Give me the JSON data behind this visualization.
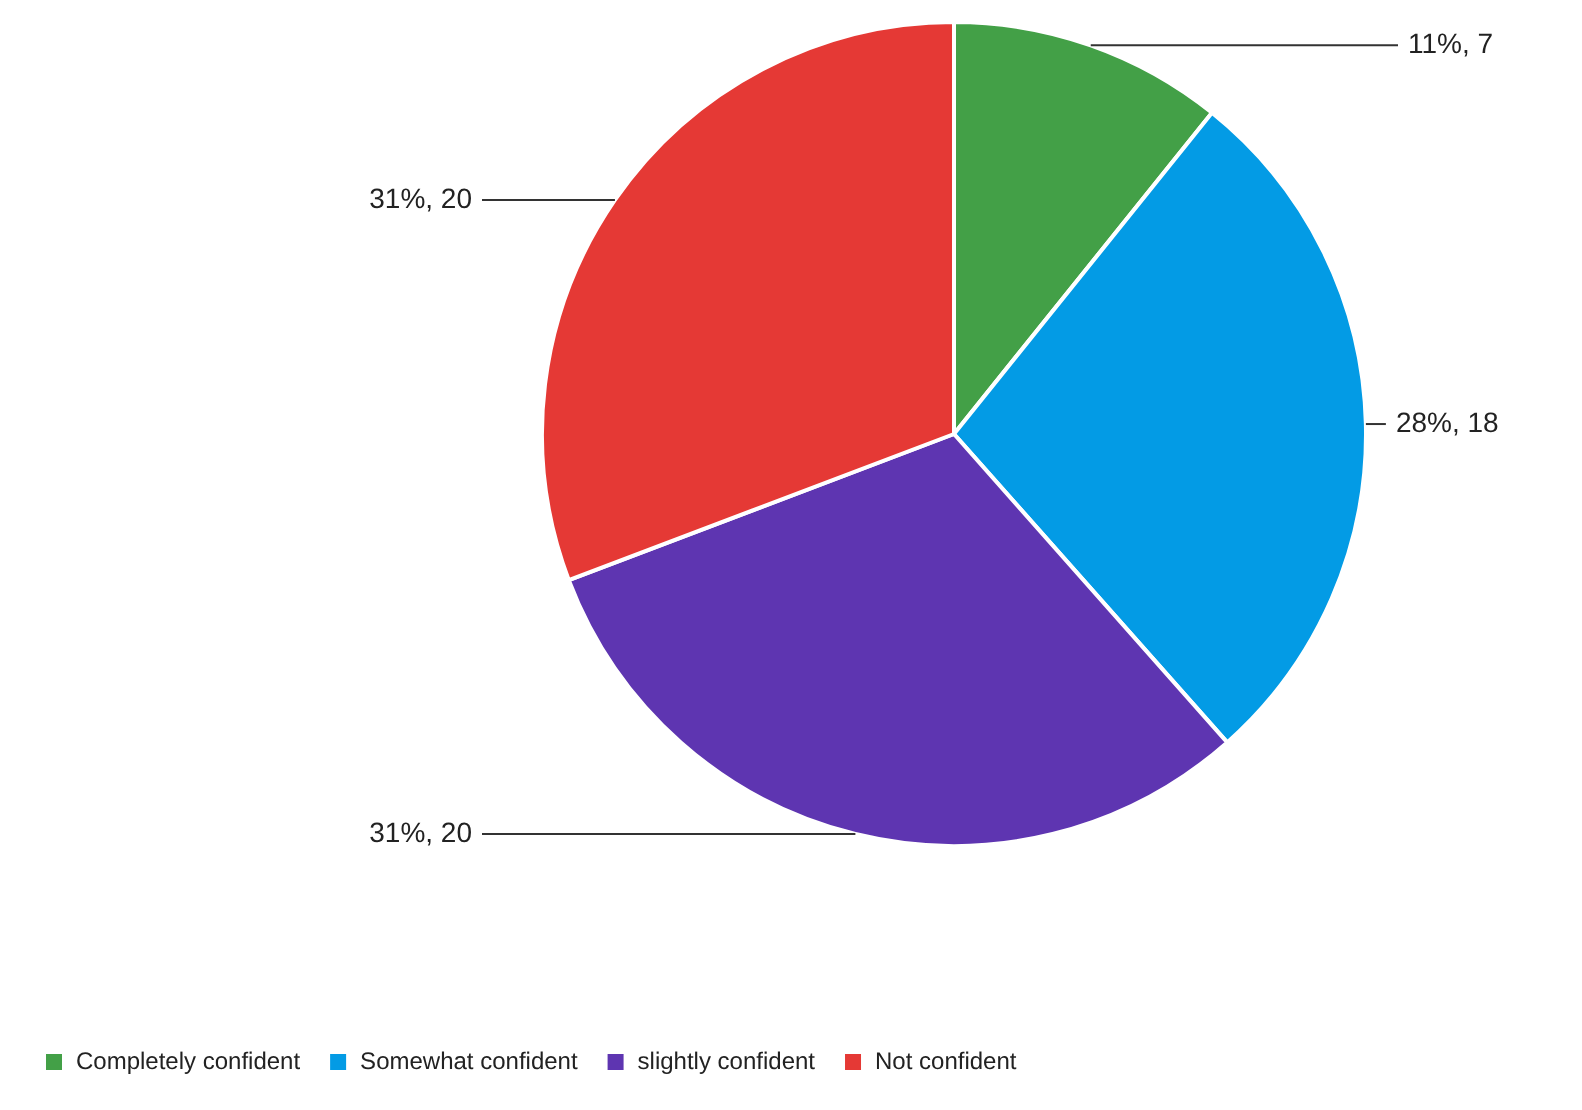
{
  "chart_data": {
    "type": "pie",
    "categories": [
      "Completely confident",
      "Somewhat confident",
      "slightly confident",
      "Not confident"
    ],
    "values": [
      7,
      18,
      20,
      20
    ],
    "colors": [
      "#43a047",
      "#039be5",
      "#5e35b1",
      "#e53935"
    ],
    "value_labels": [
      "11%, 7",
      "28%, 18",
      "31%, 20",
      "31%, 20"
    ],
    "legend": "bottom"
  }
}
